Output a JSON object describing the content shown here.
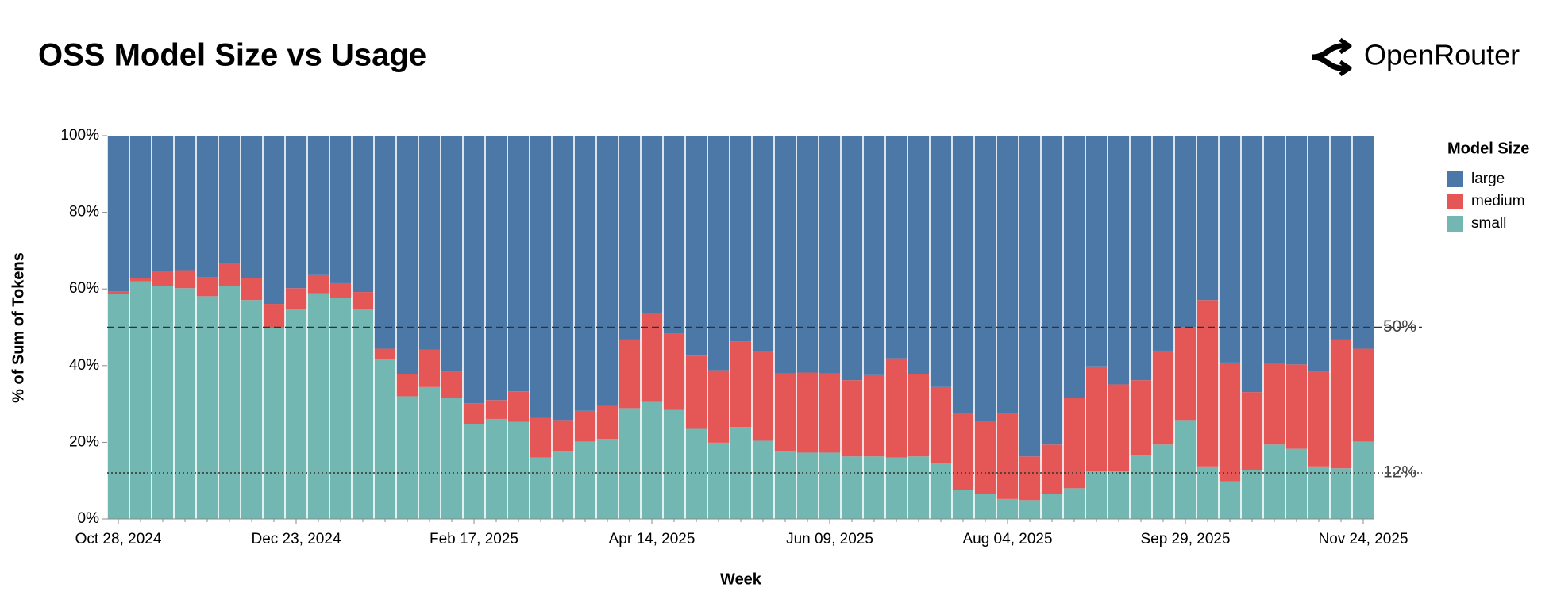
{
  "brand": "OpenRouter",
  "chart_data": {
    "type": "stacked_bar",
    "title": "OSS Model Size vs Usage",
    "x_label": "Week",
    "y_label": "% of Sum of Tokens",
    "legend_title": "Model Size",
    "legend_position": "right",
    "categories": [
      "Oct 28, 2024",
      null,
      null,
      null,
      null,
      null,
      null,
      null,
      "Dec 23, 2024",
      null,
      null,
      null,
      null,
      null,
      null,
      null,
      "Feb 17, 2025",
      null,
      null,
      null,
      null,
      null,
      null,
      null,
      "Apr 14, 2025",
      null,
      null,
      null,
      null,
      null,
      null,
      null,
      "Jun 09, 2025",
      null,
      null,
      null,
      null,
      null,
      null,
      null,
      "Aug 04, 2025",
      null,
      null,
      null,
      null,
      null,
      null,
      null,
      "Sep 29, 2025",
      null,
      null,
      null,
      null,
      null,
      null,
      null,
      "Nov 24, 2025"
    ],
    "series": [
      {
        "name": "large",
        "color": "#4c78a8",
        "values": [
          40.6,
          37.2,
          35.4,
          35.1,
          37.0,
          33.3,
          37.2,
          43.9,
          39.8,
          36.2,
          38.5,
          40.8,
          55.6,
          62.3,
          55.8,
          61.5,
          69.8,
          69.0,
          66.7,
          73.6,
          74.2,
          71.8,
          70.5,
          53.2,
          46.3,
          51.7,
          57.4,
          61.2,
          53.7,
          56.3,
          62.0,
          61.8,
          62.0,
          63.8,
          62.5,
          58.1,
          62.3,
          65.6,
          72.4,
          74.4,
          72.6,
          83.7,
          80.6,
          68.5,
          60.2,
          64.9,
          63.8,
          56.1,
          49.9,
          42.9,
          59.2,
          66.9,
          59.4,
          59.7,
          61.5,
          53.2,
          55.6
        ]
      },
      {
        "name": "medium",
        "color": "#e45756",
        "values": [
          0.7,
          0.8,
          3.9,
          4.7,
          4.9,
          6.0,
          5.7,
          6.2,
          5.4,
          4.9,
          3.9,
          4.4,
          2.8,
          5.7,
          9.8,
          7.0,
          5.4,
          4.9,
          8.0,
          10.4,
          8.2,
          8.0,
          8.6,
          17.9,
          23.2,
          19.9,
          19.1,
          18.9,
          22.3,
          23.3,
          20.4,
          20.9,
          20.7,
          19.9,
          21.2,
          25.9,
          21.4,
          19.9,
          20.1,
          19.1,
          22.2,
          11.4,
          12.9,
          23.5,
          27.4,
          22.7,
          19.7,
          24.5,
          24.3,
          43.4,
          31.0,
          20.4,
          21.2,
          22.0,
          24.8,
          33.6,
          24.2
        ]
      },
      {
        "name": "small",
        "color": "#72b7b2",
        "values": [
          58.7,
          62.0,
          60.7,
          60.2,
          58.1,
          60.7,
          57.1,
          49.9,
          54.8,
          58.9,
          57.6,
          54.8,
          41.6,
          32.0,
          34.4,
          31.5,
          24.8,
          26.1,
          25.3,
          16.0,
          17.6,
          20.2,
          20.9,
          28.9,
          30.5,
          28.4,
          23.5,
          19.9,
          24.0,
          20.4,
          17.6,
          17.3,
          17.3,
          16.3,
          16.3,
          16.0,
          16.3,
          14.5,
          7.5,
          6.5,
          5.2,
          4.9,
          6.5,
          8.0,
          12.4,
          12.4,
          16.5,
          19.4,
          25.8,
          13.7,
          9.8,
          12.7,
          19.4,
          18.3,
          13.7,
          13.2,
          20.2
        ]
      }
    ],
    "ylim": [
      0,
      100
    ],
    "yticks": [
      {
        "value": 0,
        "label": "0%"
      },
      {
        "value": 20,
        "label": "20%"
      },
      {
        "value": 40,
        "label": "40%"
      },
      {
        "value": 60,
        "label": "60%"
      },
      {
        "value": 80,
        "label": "80%"
      },
      {
        "value": 100,
        "label": "100%"
      }
    ],
    "reference_lines": [
      {
        "value": 50,
        "label": "50%",
        "style": "dashed"
      },
      {
        "value": 12,
        "label": "12%",
        "style": "dotted"
      }
    ]
  }
}
